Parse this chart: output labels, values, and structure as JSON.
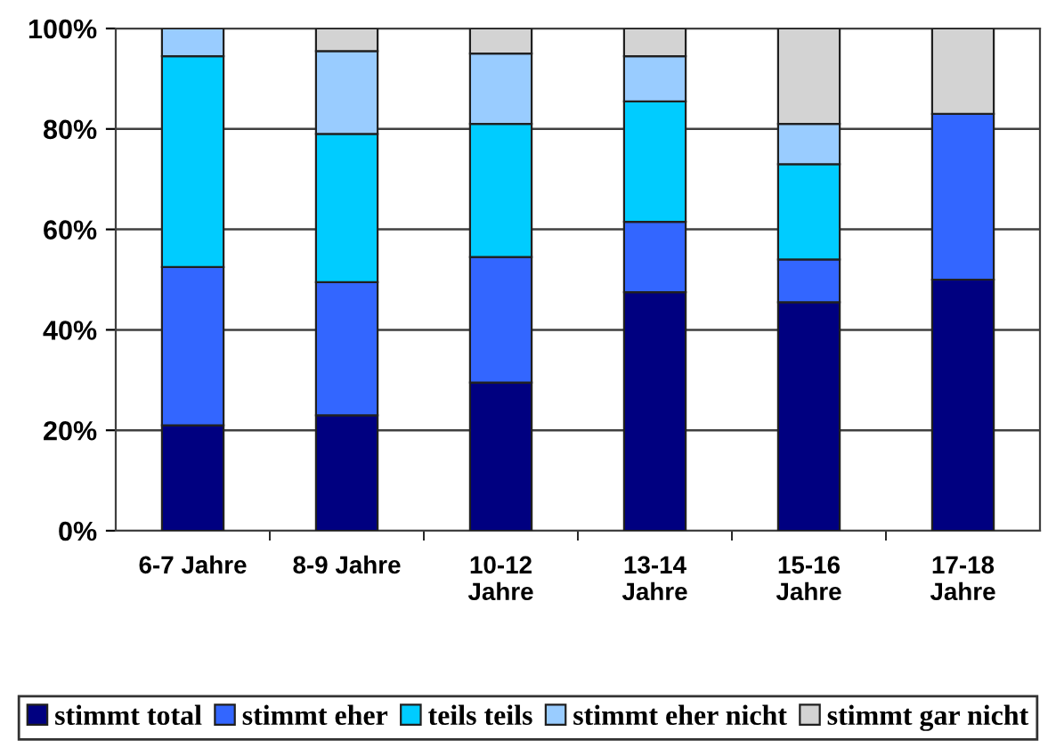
{
  "chart_data": {
    "type": "bar",
    "stacked": true,
    "categories": [
      "6-7 Jahre",
      "8-9 Jahre",
      "10-12\nJahre",
      "13-14\nJahre",
      "15-16\nJahre",
      "17-18\nJahre"
    ],
    "series": [
      {
        "name": "stimmt total",
        "color": "#000080",
        "values": [
          21,
          23,
          29.5,
          47.5,
          45.5,
          50
        ]
      },
      {
        "name": "stimmt eher",
        "color": "#3366ff",
        "values": [
          31.5,
          26.5,
          25,
          14,
          8.5,
          33
        ]
      },
      {
        "name": "teils teils",
        "color": "#00ccff",
        "values": [
          42,
          29.5,
          26.5,
          24,
          19,
          0
        ]
      },
      {
        "name": "stimmt eher nicht",
        "color": "#99ccff",
        "values": [
          5.5,
          16.5,
          14,
          9,
          8,
          0
        ]
      },
      {
        "name": "stimmt gar nicht",
        "color": "#d3d3d3",
        "values": [
          0,
          4.5,
          5,
          5.5,
          19,
          17
        ]
      }
    ],
    "ylim": [
      0,
      100
    ],
    "yticks": [
      {
        "value": 0,
        "label": "0%"
      },
      {
        "value": 20,
        "label": "20%"
      },
      {
        "value": 40,
        "label": "40%"
      },
      {
        "value": 60,
        "label": "60%"
      },
      {
        "value": 80,
        "label": "80%"
      },
      {
        "value": 100,
        "label": "100%"
      }
    ],
    "grid": "y",
    "legend": "bottom"
  }
}
